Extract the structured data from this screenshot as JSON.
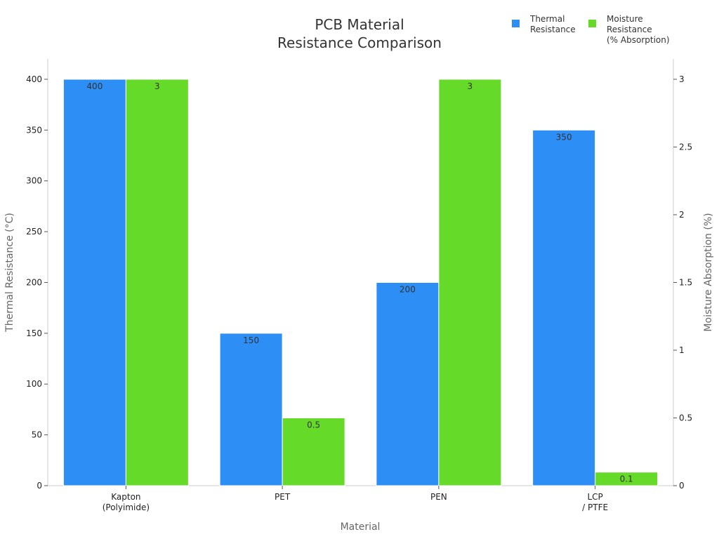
{
  "chart_data": {
    "type": "bar",
    "title_lines": [
      "PCB Material",
      "Resistance Comparison"
    ],
    "categories": [
      {
        "lines": [
          "Kapton",
          "(Polyimide)"
        ]
      },
      {
        "lines": [
          "PET"
        ]
      },
      {
        "lines": [
          "PEN"
        ]
      },
      {
        "lines": [
          "LCP",
          "/ PTFE"
        ]
      }
    ],
    "xlabel": "Material",
    "ylabel_left": "Thermal Resistance (°C)",
    "ylabel_right": "Moisture Absorption (%)",
    "ylim_left": [
      0,
      420
    ],
    "ylim_right": [
      0,
      3.15
    ],
    "yticks_left": [
      "0",
      "50",
      "100",
      "150",
      "200",
      "250",
      "300",
      "350",
      "400"
    ],
    "yticks_right": [
      "0",
      "0.5",
      "1",
      "1.5",
      "2",
      "2.5",
      "3"
    ],
    "legend_position": "top-right",
    "series": [
      {
        "name_lines": [
          "Thermal",
          "Resistance"
        ],
        "axis": "left",
        "color": "#2d8ef5",
        "values": [
          400,
          150,
          200,
          350
        ],
        "labels": [
          "400",
          "150",
          "200",
          "350"
        ]
      },
      {
        "name_lines": [
          "Moisture",
          "Resistance",
          "(% Absorption)"
        ],
        "axis": "right",
        "color": "#66da28",
        "values": [
          3,
          0.5,
          3,
          0.1
        ],
        "labels": [
          "3",
          "0.5",
          "3",
          "0.1"
        ]
      }
    ]
  }
}
